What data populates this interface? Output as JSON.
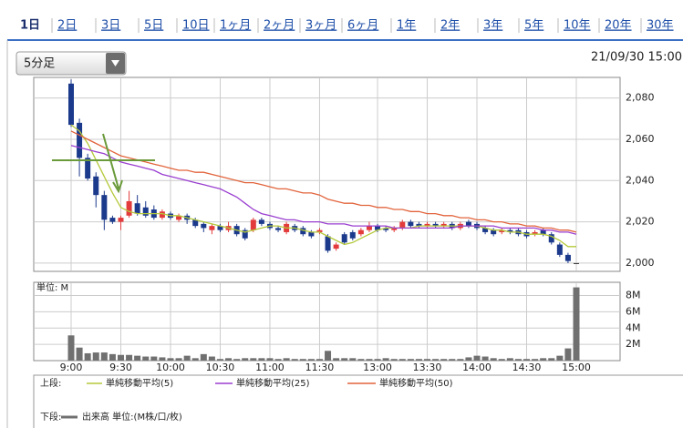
{
  "tabs": [
    "1日",
    "2日",
    "3日",
    "5日",
    "10日",
    "1ヶ月",
    "2ヶ月",
    "3ヶ月",
    "6ヶ月",
    "1年",
    "2年",
    "3年",
    "5年",
    "10年",
    "20年",
    "30年"
  ],
  "selected_tab": 0,
  "interval_select": "5分足",
  "timestamp": "21/09/30 15:00",
  "legend": {
    "upper": "上段:",
    "lower": "下段:"
  },
  "chart_data": [
    {
      "type": "candlestick",
      "up_color": "#e33b3b",
      "down_color": "#1c3a8c",
      "open": [
        2087,
        2068,
        2051,
        2042,
        2033,
        2022,
        2020,
        2023,
        2029,
        2027,
        2026,
        2022,
        2024,
        2021,
        2023,
        2021,
        2019,
        2016,
        2018,
        2016,
        2018,
        2016,
        2016,
        2021,
        2019,
        2017,
        2015,
        2018,
        2017,
        2015,
        2015,
        2013,
        2007,
        2014,
        2015,
        2014,
        2016,
        2018,
        2017,
        2016,
        2017,
        2020,
        2019,
        2018,
        2019,
        2018,
        2019,
        2017,
        2020,
        2019,
        2017,
        2016,
        2015,
        2016,
        2016,
        2015,
        2014,
        2016,
        2014,
        2009,
        2004,
        2000
      ],
      "high": [
        2089,
        2070,
        2053,
        2044,
        2035,
        2023,
        2023,
        2035,
        2033,
        2030,
        2028,
        2026,
        2025,
        2024,
        2024,
        2022,
        2020,
        2019,
        2019,
        2020,
        2019,
        2017,
        2022,
        2022,
        2020,
        2018,
        2020,
        2019,
        2018,
        2016,
        2017,
        2014,
        2010,
        2015,
        2016,
        2017,
        2020,
        2019,
        2018,
        2018,
        2021,
        2021,
        2020,
        2020,
        2020,
        2020,
        2020,
        2020,
        2021,
        2020,
        2018,
        2017,
        2017,
        2017,
        2017,
        2016,
        2016,
        2017,
        2015,
        2010,
        2005,
        2000
      ],
      "low": [
        2066,
        2042,
        2040,
        2027,
        2016,
        2019,
        2016,
        2022,
        2023,
        2022,
        2021,
        2021,
        2021,
        2020,
        2019,
        2017,
        2015,
        2014,
        2015,
        2015,
        2013,
        2011,
        2015,
        2018,
        2016,
        2015,
        2014,
        2015,
        2013,
        2012,
        2014,
        2005,
        2006,
        2009,
        2011,
        2013,
        2015,
        2015,
        2015,
        2015,
        2016,
        2017,
        2017,
        2017,
        2017,
        2017,
        2016,
        2016,
        2017,
        2016,
        2014,
        2013,
        2014,
        2014,
        2013,
        2012,
        2013,
        2013,
        2009,
        2003,
        2000,
        2000
      ],
      "close": [
        2067,
        2051,
        2041,
        2033,
        2021,
        2020,
        2022,
        2030,
        2024,
        2023,
        2022,
        2025,
        2022,
        2023,
        2021,
        2018,
        2017,
        2018,
        2016,
        2018,
        2014,
        2012,
        2021,
        2019,
        2017,
        2016,
        2019,
        2016,
        2014,
        2013,
        2016,
        2006,
        2009,
        2010,
        2012,
        2016,
        2018,
        2016,
        2016,
        2017,
        2020,
        2018,
        2018,
        2019,
        2018,
        2019,
        2017,
        2019,
        2018,
        2017,
        2015,
        2014,
        2016,
        2015,
        2014,
        2013,
        2015,
        2014,
        2010,
        2004,
        2001,
        2000
      ],
      "series": [
        {
          "name": "単純移動平均(5)",
          "color": "#b5c93a",
          "values": [
            2067,
            2064,
            2058,
            2050,
            2042,
            2034,
            2027,
            2025,
            2024,
            2024,
            2024,
            2024,
            2023,
            2023,
            2022,
            2021,
            2020,
            2019,
            2018,
            2017,
            2016,
            2015,
            2016,
            2017,
            2018,
            2018,
            2017,
            2017,
            2016,
            2015,
            2015,
            2013,
            2011,
            2009,
            2010,
            2012,
            2014,
            2016,
            2017,
            2017,
            2017,
            2017,
            2018,
            2018,
            2018,
            2018,
            2018,
            2018,
            2018,
            2018,
            2017,
            2016,
            2016,
            2015,
            2015,
            2014,
            2014,
            2014,
            2013,
            2011,
            2008,
            2008
          ]
        },
        {
          "name": "単純移動平均(25)",
          "color": "#9a3fd0",
          "values": [
            2057,
            2056,
            2055,
            2054,
            2053,
            2051,
            2049,
            2048,
            2047,
            2046,
            2045,
            2043,
            2042,
            2041,
            2040,
            2039,
            2038,
            2037,
            2036,
            2034,
            2032,
            2029,
            2026,
            2024,
            2023,
            2022,
            2021,
            2021,
            2020,
            2020,
            2020,
            2019,
            2019,
            2019,
            2018,
            2018,
            2018,
            2018,
            2018,
            2017,
            2017,
            2017,
            2017,
            2017,
            2017,
            2017,
            2017,
            2018,
            2018,
            2018,
            2018,
            2018,
            2017,
            2017,
            2017,
            2017,
            2017,
            2016,
            2016,
            2015,
            2015,
            2014
          ]
        },
        {
          "name": "単純移動平均(50)",
          "color": "#e2643c",
          "values": [
            2064,
            2062,
            2060,
            2058,
            2056,
            2054,
            2052,
            2051,
            2050,
            2049,
            2048,
            2047,
            2046,
            2045,
            2045,
            2044,
            2044,
            2043,
            2042,
            2041,
            2040,
            2039,
            2039,
            2038,
            2037,
            2036,
            2036,
            2035,
            2034,
            2034,
            2033,
            2031,
            2030,
            2029,
            2029,
            2028,
            2028,
            2027,
            2027,
            2026,
            2026,
            2025,
            2025,
            2024,
            2024,
            2023,
            2023,
            2022,
            2022,
            2021,
            2021,
            2020,
            2020,
            2019,
            2019,
            2018,
            2018,
            2017,
            2017,
            2016,
            2016,
            2015
          ]
        }
      ],
      "ylim": [
        1996,
        2090
      ],
      "yticks": [
        {
          "value": 2000,
          "label": "2,000"
        },
        {
          "value": 2020,
          "label": "2,020"
        },
        {
          "value": 2040,
          "label": "2,040"
        },
        {
          "value": 2060,
          "label": "2,060"
        },
        {
          "value": 2080,
          "label": "2,080"
        }
      ],
      "grid": true
    },
    {
      "type": "bar",
      "unit_label": "単位: M",
      "categories": [
        "9:00",
        null,
        null,
        null,
        null,
        null,
        "9:30",
        null,
        null,
        null,
        null,
        null,
        "10:00",
        null,
        null,
        null,
        null,
        null,
        "10:30",
        null,
        null,
        null,
        null,
        null,
        "11:00",
        null,
        null,
        null,
        null,
        null,
        "11:30",
        null,
        null,
        null,
        null,
        null,
        null,
        "13:00",
        null,
        null,
        null,
        null,
        null,
        "13:30",
        null,
        null,
        null,
        null,
        null,
        "14:00",
        null,
        null,
        null,
        null,
        null,
        "14:30",
        null,
        null,
        null,
        null,
        null,
        "15:00"
      ],
      "series": [
        {
          "name": "出来高 単位:(M株/口/枚)",
          "color": "#707070",
          "values": [
            3.1,
            1.6,
            0.9,
            1.0,
            1.0,
            0.8,
            0.7,
            0.7,
            0.6,
            0.5,
            0.5,
            0.4,
            0.3,
            0.3,
            0.6,
            0.3,
            0.8,
            0.5,
            0.2,
            0.3,
            0.2,
            0.3,
            0.3,
            0.3,
            0.3,
            0.2,
            0.3,
            0.2,
            0.2,
            0.2,
            0.2,
            1.2,
            0.3,
            0.3,
            0.3,
            0.2,
            0.2,
            0.2,
            0.3,
            0.2,
            0.2,
            0.2,
            0.2,
            0.2,
            0.2,
            0.2,
            0.2,
            0.2,
            0.4,
            0.6,
            0.5,
            0.3,
            0.2,
            0.3,
            0.2,
            0.2,
            0.2,
            0.3,
            0.3,
            0.6,
            1.5,
            9.0
          ]
        }
      ],
      "ylim": [
        0,
        9.4
      ],
      "yticks": [
        {
          "value": 2,
          "label": "2M"
        },
        {
          "value": 4,
          "label": "4M"
        },
        {
          "value": 6,
          "label": "6M"
        },
        {
          "value": 8,
          "label": "8M"
        }
      ],
      "grid": true
    }
  ]
}
